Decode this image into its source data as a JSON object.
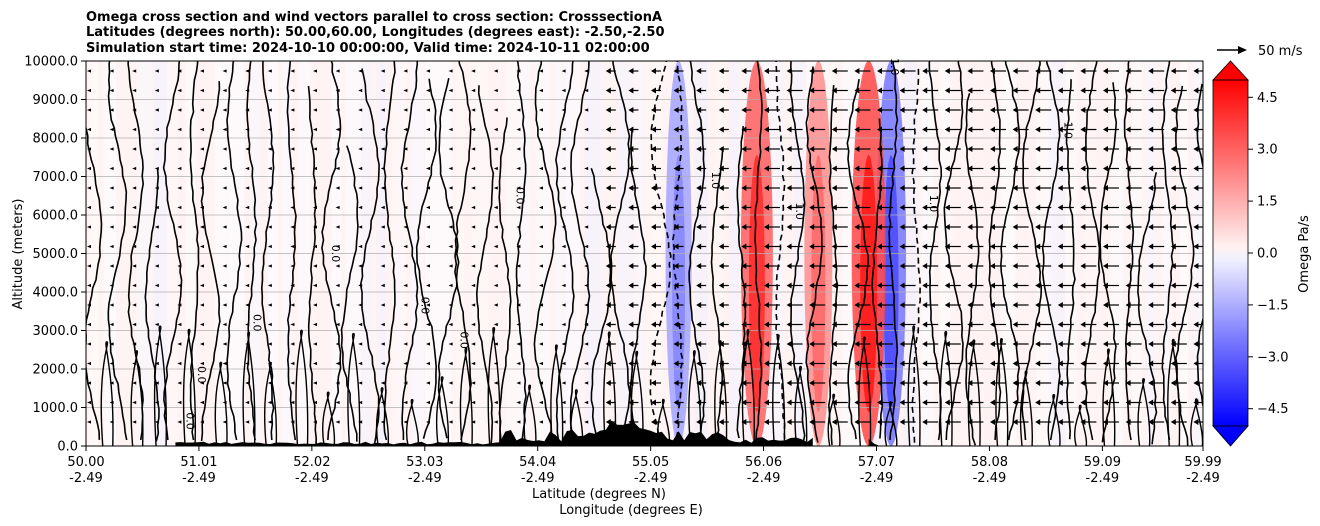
{
  "chart_data": {
    "type": "heatmap",
    "title_lines": [
      "Omega cross section and wind vectors parallel to cross section: CrosssectionA",
      "Latitudes (degrees north): 50.00,60.00, Longitudes (degrees east): -2.50,-2.50",
      "Simulation start time: 2024-10-10 00:00:00, Valid time: 2024-10-11 02:00:00"
    ],
    "ylabel": "Altitude (meters)",
    "xlabel_lines": [
      "Latitude (degrees N)",
      "Longitude (degrees E)"
    ],
    "ylim": [
      0,
      10000
    ],
    "y_ticks": [
      {
        "value": 0,
        "label": "0.0"
      },
      {
        "value": 1000,
        "label": "1000.0"
      },
      {
        "value": 2000,
        "label": "2000.0"
      },
      {
        "value": 3000,
        "label": "3000.0"
      },
      {
        "value": 4000,
        "label": "4000.0"
      },
      {
        "value": 5000,
        "label": "5000.0"
      },
      {
        "value": 6000,
        "label": "6000.0"
      },
      {
        "value": 7000,
        "label": "7000.0"
      },
      {
        "value": 8000,
        "label": "8000.0"
      },
      {
        "value": 9000,
        "label": "9000.0"
      },
      {
        "value": 10000,
        "label": "10000.0"
      }
    ],
    "xlim": [
      50.0,
      59.99
    ],
    "x_ticks": [
      {
        "value": 50.0,
        "lat": "50.00",
        "lon": "-2.49"
      },
      {
        "value": 51.01,
        "lat": "51.01",
        "lon": "-2.49"
      },
      {
        "value": 52.02,
        "lat": "52.02",
        "lon": "-2.49"
      },
      {
        "value": 53.03,
        "lat": "53.03",
        "lon": "-2.49"
      },
      {
        "value": 54.04,
        "lat": "54.04",
        "lon": "-2.49"
      },
      {
        "value": 55.05,
        "lat": "55.05",
        "lon": "-2.49"
      },
      {
        "value": 56.06,
        "lat": "56.06",
        "lon": "-2.49"
      },
      {
        "value": 57.07,
        "lat": "57.07",
        "lon": "-2.49"
      },
      {
        "value": 58.08,
        "lat": "58.08",
        "lon": "-2.49"
      },
      {
        "value": 59.09,
        "lat": "59.09",
        "lon": "-2.49"
      },
      {
        "value": 59.99,
        "lat": "59.99",
        "lon": "-2.49"
      }
    ],
    "grid": "horizontal",
    "colorbar": {
      "label": "Omega Pa/s",
      "range": [
        -5.0,
        5.0
      ],
      "ticks": [
        {
          "value": 4.5,
          "label": "4.5"
        },
        {
          "value": 3.0,
          "label": "3.0"
        },
        {
          "value": 1.5,
          "label": "1.5"
        },
        {
          "value": 0.0,
          "label": "0.0"
        },
        {
          "value": -1.5,
          "label": "−1.5"
        },
        {
          "value": -3.0,
          "label": "−3.0"
        },
        {
          "value": -4.5,
          "label": "−4.5"
        }
      ],
      "extend": "both",
      "levels": 20
    },
    "quiver_key": {
      "value": 50,
      "label": "50 m/s"
    },
    "contour_labels": [
      {
        "text": "0.0",
        "x": 51.0,
        "y": 1850
      },
      {
        "text": "0.0",
        "x": 51.5,
        "y": 3200
      },
      {
        "text": "0.0",
        "x": 53.0,
        "y": 3650
      },
      {
        "text": "0.0",
        "x": 53.35,
        "y": 2750
      },
      {
        "text": "0.0",
        "x": 50.9,
        "y": 650
      },
      {
        "text": "0.0",
        "x": 52.2,
        "y": 5000
      },
      {
        "text": "0.0",
        "x": 53.85,
        "y": 6500
      },
      {
        "text": "1.0",
        "x": 57.2,
        "y": 9850
      },
      {
        "text": "1.0",
        "x": 55.6,
        "y": 6900
      },
      {
        "text": "1.0",
        "x": 56.35,
        "y": 6100
      },
      {
        "text": "1.0",
        "x": 57.55,
        "y": 6300
      },
      {
        "text": "1.0",
        "x": 58.75,
        "y": 8200
      }
    ],
    "features": [
      {
        "type": "omega_band",
        "x": 55.3,
        "value": -2.0
      },
      {
        "type": "omega_band",
        "x": 56.55,
        "value": 2.5
      },
      {
        "type": "omega_band",
        "x": 57.2,
        "value": -3.0
      },
      {
        "type": "omega_band",
        "x": 57.0,
        "value": 4.0
      },
      {
        "type": "omega_band",
        "x": 56.0,
        "value": 3.5
      }
    ]
  }
}
